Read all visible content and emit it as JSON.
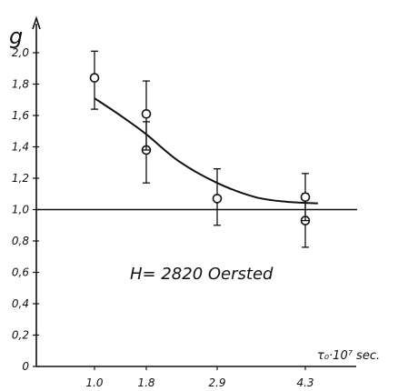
{
  "chart_data": {
    "type": "scatter",
    "title": "",
    "annotation": "H= 2820  Oersted",
    "ylabel": "g",
    "xlabel": "τ₀·10⁷ sec.",
    "ylim": [
      0,
      2.1
    ],
    "yticks": [
      "0",
      "0,2",
      "0,4",
      "0,6",
      "0,8",
      "1,0",
      "1,2",
      "1,4",
      "1,6",
      "1,8",
      "2,0"
    ],
    "xticks": [
      "1.0",
      "1.8",
      "2.9",
      "4.3"
    ],
    "reference_line_y": 1.0,
    "series": [
      {
        "points": [
          {
            "x": 1.0,
            "y": 1.84,
            "err_low": 1.64,
            "err_high": 2.01
          },
          {
            "x": 1.8,
            "y": 1.38,
            "err_low": 1.17,
            "err_high": 1.56
          },
          {
            "x": 1.8,
            "y": 1.61,
            "err_low": 1.38,
            "err_high": 1.82
          },
          {
            "x": 2.9,
            "y": 1.07,
            "err_low": 0.9,
            "err_high": 1.26
          },
          {
            "x": 4.3,
            "y": 0.93,
            "err_low": 0.76,
            "err_high": 1.1
          },
          {
            "x": 4.3,
            "y": 1.08,
            "err_low": 0.93,
            "err_high": 1.23
          }
        ]
      }
    ],
    "fit_curve": [
      {
        "x": 1.0,
        "y": 1.71
      },
      {
        "x": 1.4,
        "y": 1.6
      },
      {
        "x": 1.8,
        "y": 1.48
      },
      {
        "x": 2.3,
        "y": 1.31
      },
      {
        "x": 2.9,
        "y": 1.17
      },
      {
        "x": 3.5,
        "y": 1.08
      },
      {
        "x": 4.0,
        "y": 1.05
      },
      {
        "x": 4.5,
        "y": 1.04
      }
    ],
    "grid": false
  }
}
